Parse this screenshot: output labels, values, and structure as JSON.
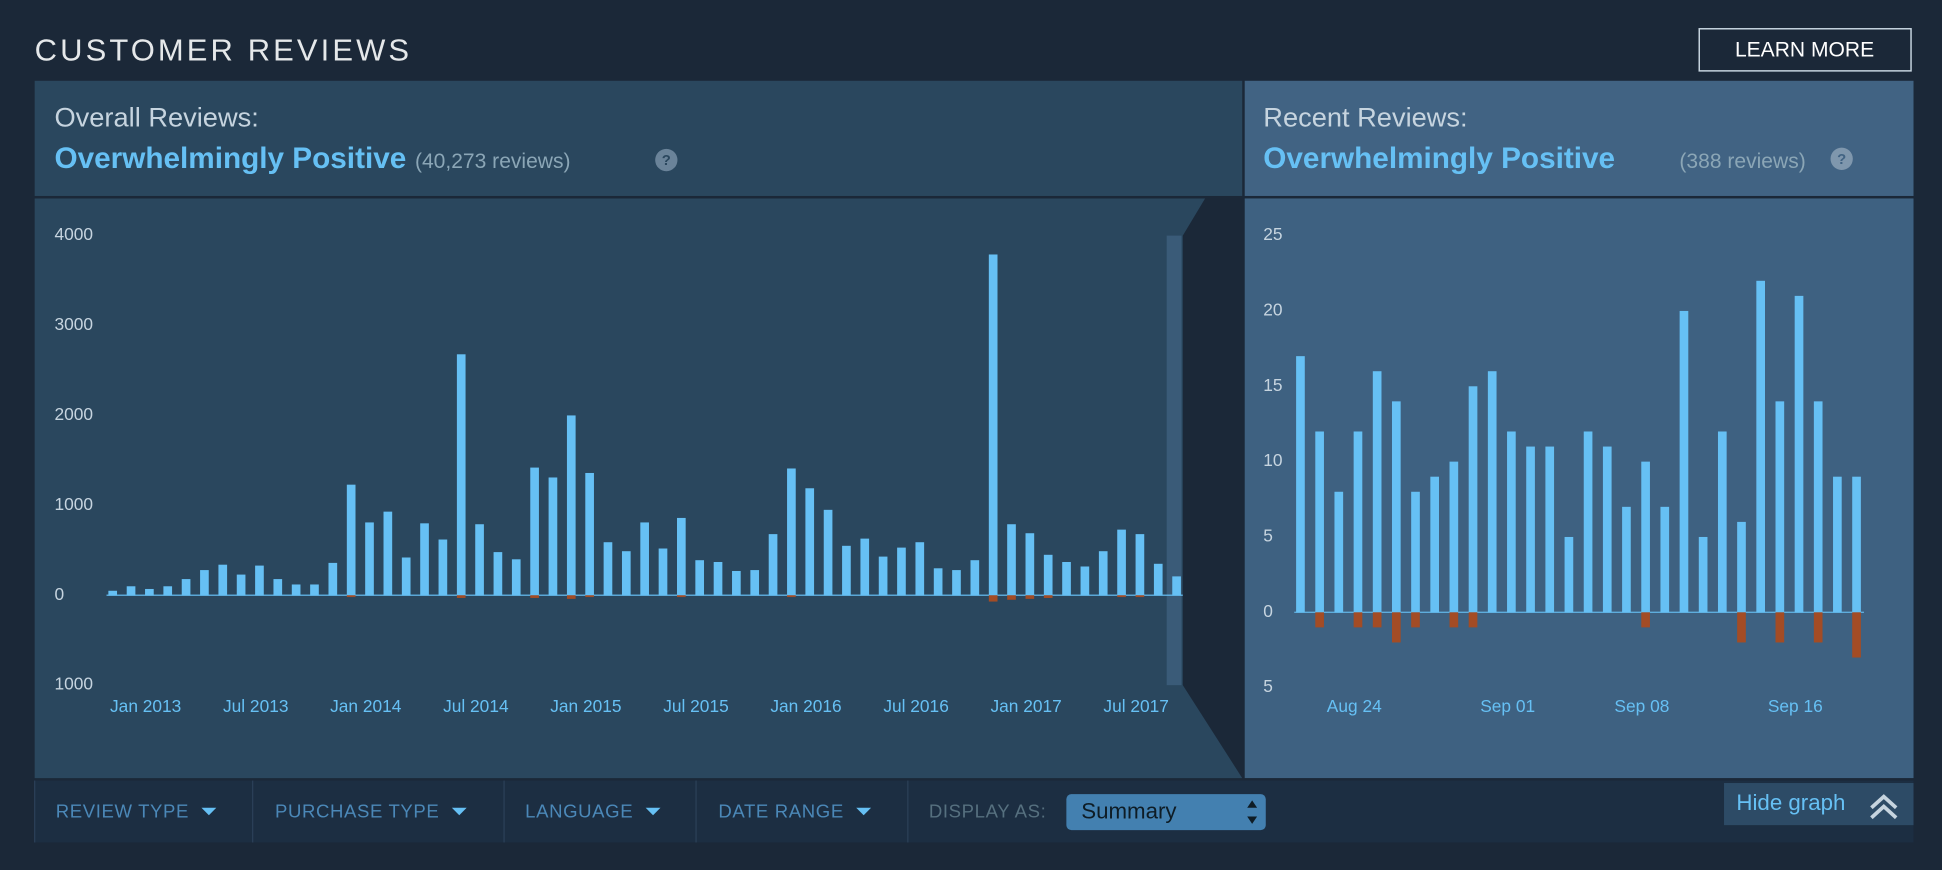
{
  "header": {
    "title": "CUSTOMER REVIEWS",
    "learn_more": "LEARN MORE"
  },
  "overall": {
    "label": "Overall Reviews:",
    "summary": "Overwhelmingly Positive",
    "count": "(40,273 reviews)",
    "help": "?"
  },
  "recent": {
    "label": "Recent Reviews:",
    "summary": "Overwhelmingly Positive",
    "count": "(388 reviews)",
    "help": "?"
  },
  "chart_data": [
    {
      "type": "bar",
      "categories": [
        null,
        null,
        "Jan 2013",
        null,
        null,
        null,
        null,
        null,
        "Jul 2013",
        null,
        null,
        null,
        null,
        null,
        "Jan 2014",
        null,
        null,
        null,
        null,
        null,
        "Jul 2014",
        null,
        null,
        null,
        null,
        null,
        "Jan 2015",
        null,
        null,
        null,
        null,
        null,
        "Jul 2015",
        null,
        null,
        null,
        null,
        null,
        "Jan 2016",
        null,
        null,
        null,
        null,
        null,
        "Jul 2016",
        null,
        null,
        null,
        null,
        null,
        "Jan 2017",
        null,
        null,
        null,
        null,
        null,
        "Jul 2017",
        null,
        null
      ],
      "series": [
        {
          "color": "#66c0f4",
          "values": [
            50,
            100,
            70,
            100,
            180,
            280,
            340,
            230,
            330,
            180,
            120,
            120,
            360,
            1230,
            810,
            930,
            420,
            800,
            620,
            2680,
            790,
            480,
            400,
            1420,
            1310,
            2000,
            1360,
            590,
            490,
            810,
            520,
            860,
            390,
            370,
            270,
            280,
            680,
            1410,
            1190,
            950,
            550,
            630,
            430,
            530,
            590,
            300,
            280,
            390,
            3790,
            790,
            690,
            450,
            370,
            320,
            490,
            730,
            680,
            350,
            210
          ]
        },
        {
          "color": "#a34c25",
          "values": [
            0,
            0,
            0,
            0,
            0,
            0,
            0,
            0,
            0,
            0,
            0,
            0,
            0,
            -20,
            0,
            0,
            0,
            0,
            0,
            -30,
            0,
            0,
            0,
            -30,
            0,
            -40,
            -20,
            0,
            0,
            0,
            0,
            -20,
            0,
            0,
            0,
            0,
            0,
            -20,
            0,
            0,
            0,
            0,
            0,
            0,
            0,
            0,
            0,
            0,
            -70,
            -50,
            -40,
            -30,
            0,
            0,
            0,
            -20,
            -20,
            0,
            0
          ]
        }
      ],
      "ylim": [
        -1000,
        4000
      ],
      "yticks": [
        4000,
        3000,
        2000,
        1000,
        0,
        {
          "value": -1000,
          "label": "1000"
        }
      ]
    },
    {
      "type": "bar",
      "categories": [
        null,
        null,
        null,
        "Aug 24",
        null,
        null,
        null,
        null,
        null,
        null,
        null,
        "Sep 01",
        null,
        null,
        null,
        null,
        null,
        null,
        "Sep 08",
        null,
        null,
        null,
        null,
        null,
        null,
        null,
        "Sep 16",
        null,
        null,
        null
      ],
      "series": [
        {
          "color": "#66c0f4",
          "values": [
            17,
            12,
            8,
            12,
            16,
            14,
            8,
            9,
            10,
            15,
            16,
            12,
            11,
            11,
            5,
            12,
            11,
            7,
            10,
            7,
            20,
            5,
            12,
            6,
            22,
            14,
            21,
            14,
            9,
            9
          ]
        },
        {
          "color": "#a34c25",
          "values": [
            0,
            -1,
            0,
            -1,
            -1,
            -2,
            -1,
            0,
            -1,
            -1,
            0,
            0,
            0,
            0,
            0,
            0,
            0,
            0,
            -1,
            0,
            0,
            0,
            0,
            -2,
            0,
            -2,
            0,
            -2,
            0,
            -3
          ]
        }
      ],
      "ylim": [
        -5,
        25
      ],
      "yticks": [
        25,
        20,
        15,
        10,
        5,
        0,
        {
          "value": -5,
          "label": "5"
        }
      ]
    }
  ],
  "filters": {
    "items": [
      "REVIEW TYPE",
      "PURCHASE TYPE",
      "LANGUAGE",
      "DATE RANGE"
    ],
    "display_as": "DISPLAY AS:",
    "display_value": "Summary",
    "hide_graph": "Hide graph"
  }
}
